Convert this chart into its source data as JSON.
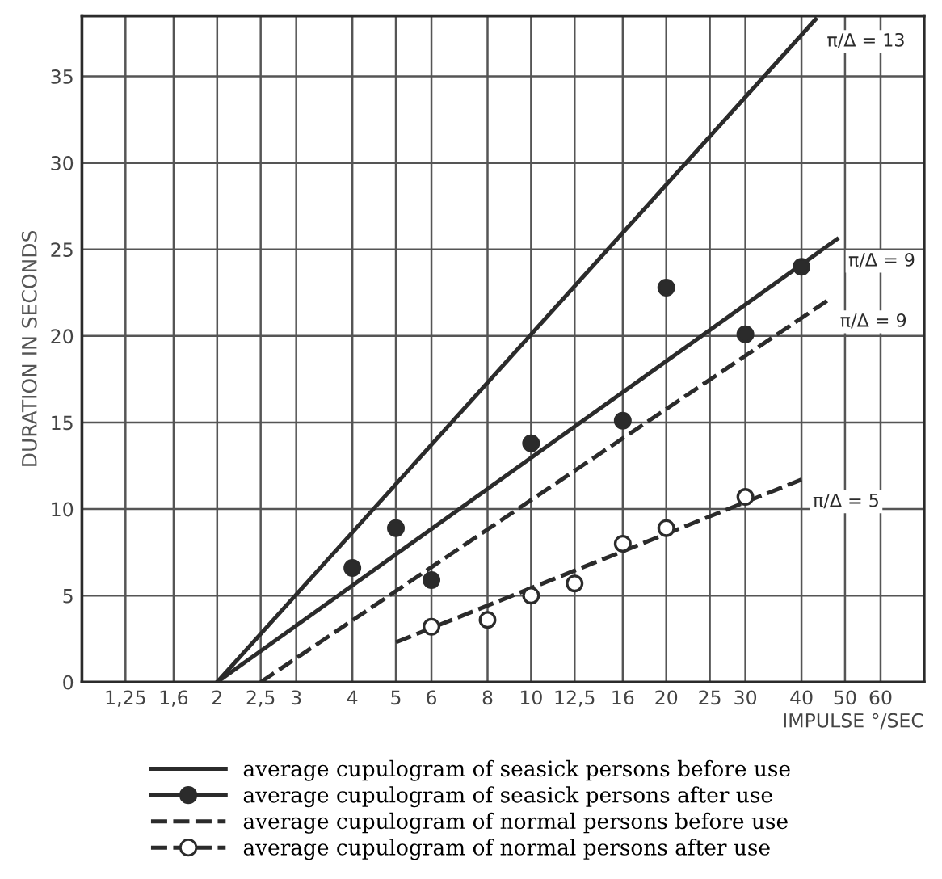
{
  "chart_data": {
    "type": "line",
    "log": "x",
    "grid": true,
    "legend": "bottom",
    "xlabel": "IMPULSE °/SEC",
    "ylabel": "DURATION IN SECONDS",
    "xlim": [
      1,
      75
    ],
    "ylim": [
      0,
      38.5
    ],
    "xticks": [
      {
        "value": 1.25,
        "label": "1,25"
      },
      {
        "value": 1.6,
        "label": "1,6"
      },
      2,
      {
        "value": 2.5,
        "label": "2,5"
      },
      3,
      4,
      5,
      6,
      8,
      10,
      {
        "value": 12.5,
        "label": "12,5"
      },
      16,
      20,
      25,
      30,
      40,
      50,
      60
    ],
    "yticks": [
      0,
      5,
      10,
      15,
      20,
      25,
      30,
      35
    ],
    "series": [
      {
        "name": "average cupulogram of seasick persons before use",
        "line_style": "solid",
        "color": "#2b2b2b",
        "x": [
          2,
          43
        ],
        "values": [
          0,
          38.3
        ]
      },
      {
        "name": "average cupulogram of seasick persons after use",
        "type": "scatter",
        "marker": "circle",
        "line_style": "solid",
        "color": "#2b2b2b",
        "x": [
          4,
          5,
          6,
          10,
          16,
          20,
          30,
          40
        ],
        "values": [
          6.6,
          8.9,
          5.9,
          13.8,
          15.1,
          22.8,
          20.1,
          24.0
        ]
      },
      {
        "line_style": "solid",
        "color": "#2b2b2b",
        "x": [
          2,
          48
        ],
        "values": [
          0,
          25.6
        ]
      },
      {
        "name": "average cupulogram of normal persons before use",
        "line_style": "dashed",
        "color": "#2b2b2b",
        "x": [
          2.5,
          46
        ],
        "values": [
          0,
          22.1
        ]
      },
      {
        "name": "average cupulogram of normal persons after use",
        "type": "scatter",
        "marker": "circle",
        "line_style": "dashed",
        "color": "#ffffff",
        "x": [
          6,
          8,
          10,
          12.5,
          16,
          20,
          30
        ],
        "values": [
          3.2,
          3.6,
          5.0,
          5.7,
          8.0,
          8.9,
          10.7
        ]
      },
      {
        "line_style": "dashed",
        "color": "#2b2b2b",
        "x": [
          5,
          40
        ],
        "values": [
          2.3,
          11.7
        ]
      }
    ],
    "annotations": [
      {
        "text": "π/Δ = 13",
        "x": 43,
        "y": 38.3
      },
      {
        "text": "π/Δ = 9",
        "x": 48,
        "y": 25.6
      },
      {
        "text": "π/Δ = 9",
        "x": 46,
        "y": 22.1
      },
      {
        "text": "π/Δ = 5",
        "x": 40,
        "y": 11.7
      }
    ]
  }
}
